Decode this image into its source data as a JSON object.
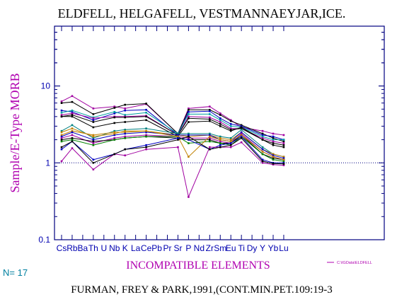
{
  "chart_data": {
    "type": "line",
    "title": "ELDFELL,  HELGAFELL,  VESTMANNAEYJAR,ICE.",
    "xlabel": "INCOMPATIBLE ELEMENTS",
    "ylabel": "Sample/E-Type MORB",
    "ylog": true,
    "ylim": [
      0.1,
      60
    ],
    "yticks": [
      "10",
      "1",
      "0.1"
    ],
    "categories": [
      "Cs",
      "Rb",
      "Ba",
      "Th",
      "U",
      "Nb",
      "K",
      "La",
      "Ce",
      "Pb",
      "Pr",
      "Sr",
      "P",
      "Nd",
      "Zr",
      "Sm",
      "Eu",
      "Ti",
      "Dy",
      "Y",
      "Yb",
      "Lu"
    ],
    "reference_line": 1,
    "grid": false,
    "legend_position": "right",
    "series": [
      {
        "color": "#a000a0",
        "values": [
          6.3,
          7.4,
          null,
          5.1,
          null,
          5.4,
          5.1,
          null,
          5.8,
          null,
          null,
          2.4,
          5.1,
          null,
          5.4,
          4.4,
          3.6,
          2.9,
          null,
          2.6,
          2.4,
          2.3
        ]
      },
      {
        "color": "#000000",
        "values": [
          6.0,
          6.2,
          null,
          4.3,
          null,
          5.2,
          5.7,
          null,
          5.9,
          null,
          null,
          2.4,
          4.9,
          null,
          4.9,
          4.2,
          3.5,
          3.1,
          null,
          2.4,
          2.1,
          1.9
        ]
      },
      {
        "color": "#0000c0",
        "values": [
          4.8,
          4.6,
          null,
          3.6,
          null,
          4.4,
          4.8,
          null,
          4.9,
          null,
          null,
          2.3,
          4.6,
          null,
          4.7,
          3.8,
          3.2,
          3.0,
          null,
          2.3,
          2.2,
          2.0
        ]
      },
      {
        "color": "#00a0a0",
        "values": [
          4.5,
          4.8,
          null,
          3.9,
          null,
          4.6,
          4.2,
          null,
          4.5,
          null,
          null,
          2.4,
          4.3,
          null,
          4.3,
          3.6,
          3.0,
          2.9,
          null,
          2.2,
          2.0,
          2.0
        ]
      },
      {
        "color": "#a000a0",
        "values": [
          4.2,
          4.4,
          null,
          3.8,
          null,
          4.0,
          4.0,
          null,
          4.1,
          null,
          null,
          2.3,
          4.0,
          null,
          3.9,
          3.4,
          2.8,
          2.8,
          null,
          2.1,
          1.9,
          1.8
        ]
      },
      {
        "color": "#000000",
        "values": [
          4.0,
          4.2,
          null,
          3.4,
          null,
          3.9,
          3.9,
          null,
          4.0,
          null,
          null,
          2.3,
          3.8,
          null,
          3.7,
          3.2,
          2.7,
          2.8,
          null,
          2.0,
          1.8,
          1.7
        ]
      },
      {
        "color": "#000000",
        "values": [
          4.0,
          4.0,
          null,
          2.9,
          null,
          3.3,
          3.4,
          null,
          3.6,
          null,
          null,
          2.2,
          3.4,
          null,
          3.5,
          3.0,
          2.6,
          2.9,
          null,
          2.0,
          1.7,
          1.6
        ]
      },
      {
        "color": "#008080",
        "values": [
          2.6,
          3.1,
          null,
          2.1,
          null,
          2.6,
          2.7,
          null,
          2.8,
          null,
          null,
          2.4,
          2.4,
          null,
          2.4,
          2.2,
          2.1,
          2.7,
          null,
          1.6,
          1.3,
          1.2
        ]
      },
      {
        "color": "#c08000",
        "values": [
          2.3,
          2.6,
          null,
          2.3,
          null,
          2.5,
          2.5,
          null,
          2.6,
          null,
          null,
          2.3,
          2.2,
          null,
          2.3,
          2.1,
          2.0,
          2.5,
          null,
          1.5,
          1.3,
          1.2
        ]
      },
      {
        "color": "#0000c0",
        "values": [
          2.2,
          2.5,
          null,
          2.0,
          null,
          2.3,
          2.4,
          null,
          2.5,
          null,
          null,
          2.3,
          2.3,
          null,
          2.3,
          2.0,
          1.9,
          2.5,
          null,
          1.5,
          1.25,
          1.15
        ]
      },
      {
        "color": "#a000a0",
        "values": [
          2.1,
          2.3,
          null,
          1.8,
          null,
          2.1,
          2.2,
          null,
          2.3,
          null,
          null,
          2.2,
          2.1,
          null,
          2.1,
          1.9,
          1.8,
          2.4,
          null,
          1.4,
          1.2,
          1.1
        ]
      },
      {
        "color": "#000000",
        "values": [
          2.0,
          2.1,
          null,
          1.9,
          null,
          2.0,
          2.1,
          null,
          2.2,
          null,
          null,
          2.1,
          2.0,
          null,
          2.0,
          1.8,
          1.8,
          2.3,
          null,
          1.3,
          1.15,
          1.1
        ]
      },
      {
        "color": "#008000",
        "values": [
          1.9,
          2.0,
          null,
          1.7,
          null,
          2.0,
          2.1,
          null,
          2.2,
          null,
          null,
          2.2,
          1.8,
          null,
          1.9,
          1.8,
          1.7,
          2.2,
          null,
          1.3,
          1.1,
          1.05
        ]
      },
      {
        "color": "#c08000",
        "values": [
          2.5,
          2.8,
          null,
          2.2,
          null,
          2.4,
          2.6,
          null,
          2.6,
          null,
          null,
          2.2,
          1.2,
          null,
          2.2,
          2.0,
          1.9,
          2.3,
          null,
          1.4,
          1.2,
          1.1
        ]
      },
      {
        "color": "#0000c0",
        "values": [
          1.5,
          1.9,
          null,
          1.1,
          null,
          1.3,
          1.5,
          null,
          1.7,
          null,
          null,
          2.1,
          2.0,
          null,
          1.5,
          1.7,
          1.8,
          2.2,
          null,
          1.1,
          1.0,
          1.0
        ]
      },
      {
        "color": "#a000a0",
        "values": [
          1.05,
          1.55,
          null,
          0.82,
          null,
          1.3,
          1.25,
          null,
          1.5,
          null,
          null,
          1.6,
          0.36,
          null,
          1.6,
          1.6,
          1.6,
          1.85,
          null,
          1.0,
          0.95,
          0.93
        ]
      },
      {
        "color": "#000000",
        "values": [
          1.6,
          1.9,
          null,
          1.0,
          null,
          1.3,
          1.5,
          null,
          1.6,
          null,
          null,
          2.0,
          2.2,
          null,
          1.5,
          1.6,
          1.7,
          2.1,
          null,
          1.05,
          0.98,
          0.97
        ]
      }
    ],
    "n_label": "N= 17",
    "legend_text": "C:\\IGData\\ELDFELL",
    "citation": "FURMAN,  FREY  &  PARK,1991,(CONT.MIN.PET.109:19-3",
    "colors": {
      "axis": "#000080",
      "ylabel": "#b000b0",
      "xlabel": "#b000b0",
      "ticks": "#0000b0",
      "n_label": "#0080a0"
    }
  }
}
